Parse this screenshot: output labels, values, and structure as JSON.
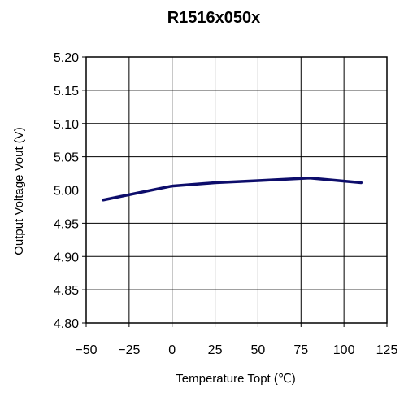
{
  "chart_data": {
    "type": "line",
    "title": "R1516x050x",
    "xlabel": "Temperature Topt (℃)",
    "ylabel": "Output Voltage Vout (V)",
    "xlim": [
      -50,
      125
    ],
    "ylim": [
      4.8,
      5.2
    ],
    "x_ticks": [
      -50,
      -25,
      0,
      25,
      50,
      75,
      100,
      125
    ],
    "x_tick_labels": [
      "−50",
      "−25",
      "0",
      "25",
      "50",
      "75",
      "100",
      "125"
    ],
    "y_ticks": [
      4.8,
      4.85,
      4.9,
      4.95,
      5.0,
      5.05,
      5.1,
      5.15,
      5.2
    ],
    "y_tick_labels": [
      "4.80",
      "4.85",
      "4.90",
      "4.95",
      "5.00",
      "5.05",
      "5.10",
      "5.15",
      "5.20"
    ],
    "grid": true,
    "series": [
      {
        "color": "#0d0d6b",
        "x": [
          -40,
          0,
          25,
          50,
          80,
          110
        ],
        "y": [
          4.985,
          5.006,
          5.011,
          5.014,
          5.018,
          5.011
        ]
      }
    ]
  }
}
